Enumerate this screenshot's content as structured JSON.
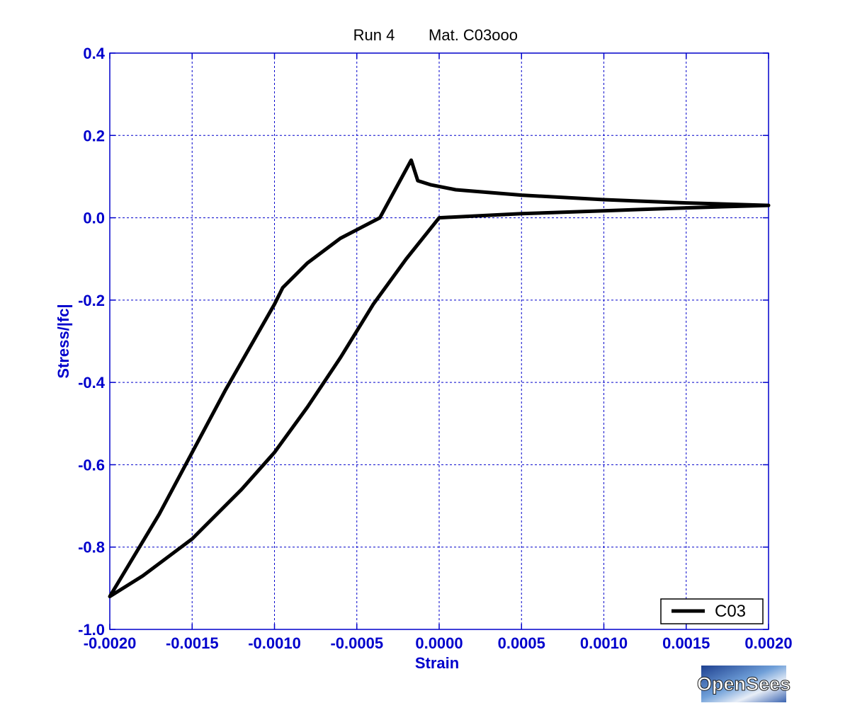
{
  "chart_data": {
    "type": "line",
    "title_run": "Run 4",
    "title_mat": "Mat. C03ooo",
    "xlabel": "Strain",
    "ylabel": "Stress/|fc|",
    "xlim": [
      -0.002,
      0.002
    ],
    "ylim": [
      -1.0,
      0.4
    ],
    "xticks": [
      -0.002,
      -0.0015,
      -0.001,
      -0.0005,
      0.0,
      0.0005,
      0.001,
      0.0015,
      0.002
    ],
    "xtick_labels": [
      "-0.0020",
      "-0.0015",
      "-0.0010",
      "-0.0005",
      "0.0000",
      "0.0005",
      "0.0010",
      "0.0015",
      "0.0020"
    ],
    "yticks": [
      0.4,
      0.2,
      0.0,
      -0.2,
      -0.4,
      -0.6,
      -0.8,
      -1.0
    ],
    "ytick_labels": [
      "0.4",
      "0.2",
      "0.0",
      "-0.2",
      "-0.4",
      "-0.6",
      "-0.8",
      "-1.0"
    ],
    "grid": true,
    "legend_position": "bottom-right",
    "colors": {
      "axes": "#0000cc",
      "line": "#000000",
      "grid": "#0000cc"
    },
    "series": [
      {
        "name": "C03",
        "x": [
          0.002,
          0.0015,
          0.001,
          0.0005,
          0.0001,
          -5e-05,
          -0.00013,
          -0.00017,
          -0.00036,
          -0.0006,
          -0.0008,
          -0.00095,
          -0.001,
          -0.0013,
          -0.0017,
          -0.002,
          -0.0018,
          -0.0015,
          -0.0012,
          -0.001,
          -0.0008,
          -0.0006,
          -0.0004,
          -0.0002,
          0.0,
          0.0005,
          0.001,
          0.0015,
          0.002
        ],
        "y": [
          0.03,
          0.036,
          0.044,
          0.055,
          0.068,
          0.08,
          0.09,
          0.14,
          0.0,
          -0.05,
          -0.11,
          -0.17,
          -0.21,
          -0.42,
          -0.72,
          -0.92,
          -0.87,
          -0.78,
          -0.66,
          -0.57,
          -0.46,
          -0.34,
          -0.21,
          -0.1,
          0.0,
          0.01,
          0.017,
          0.024,
          0.03
        ]
      }
    ]
  },
  "logo": {
    "text": "OpenSees"
  }
}
